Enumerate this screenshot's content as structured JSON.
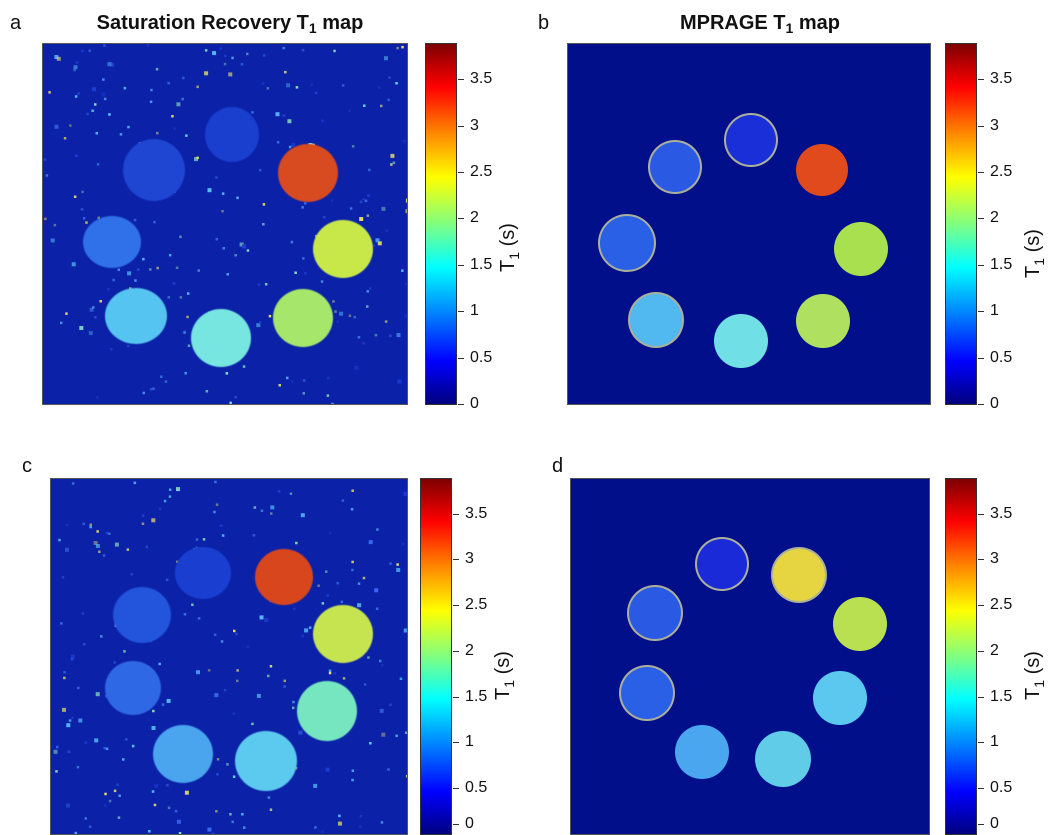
{
  "panels": [
    {
      "letter": "a",
      "title": "Saturation Recovery T",
      "title_sub": "1",
      "title_tail": " map"
    },
    {
      "letter": "b",
      "title": "MPRAGE T",
      "title_sub": "1",
      "title_tail": " map"
    },
    {
      "letter": "c",
      "title": "",
      "title_sub": "",
      "title_tail": ""
    },
    {
      "letter": "d",
      "title": "",
      "title_sub": "",
      "title_tail": ""
    }
  ],
  "colorbar": {
    "label": "T",
    "label_sub": "1",
    "label_unit": " (s)",
    "ticks": [
      "3.5",
      "3",
      "2.5",
      "2",
      "1.5",
      "1",
      "0.5",
      "0"
    ],
    "colormap": "jet",
    "range": [
      0,
      3.9
    ]
  },
  "colors": {
    "background_map": "#0a1a8c",
    "vial_low": "#2a55e0",
    "vial_mid": "#3ac0e6",
    "vial_high": "#d84020"
  }
}
